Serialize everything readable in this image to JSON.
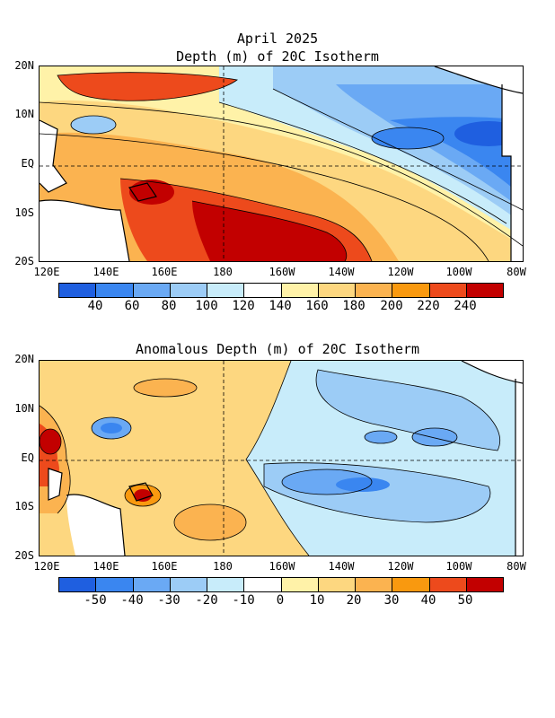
{
  "top": {
    "title1": "April 2025",
    "title2": "Depth (m) of 20C Isotherm",
    "colorbar": {
      "labels": [
        "40",
        "60",
        "80",
        "100",
        "120",
        "140",
        "160",
        "180",
        "200",
        "220",
        "240"
      ],
      "colors": [
        "#1f5fe0",
        "#3a86f0",
        "#6aa9f4",
        "#9cccf6",
        "#c8ecfa",
        "#ffffff",
        "#fff2a8",
        "#fdd780",
        "#fbb350",
        "#f9990f",
        "#ed4a1c",
        "#c20000"
      ]
    }
  },
  "bottom": {
    "title": "Anomalous Depth (m) of 20C Isotherm",
    "colorbar": {
      "labels": [
        "-50",
        "-40",
        "-30",
        "-20",
        "-10",
        "0",
        "10",
        "20",
        "30",
        "40",
        "50"
      ],
      "colors": [
        "#1f5fe0",
        "#3a86f0",
        "#6aa9f4",
        "#9cccf6",
        "#c8ecfa",
        "#ffffff",
        "#fff2a8",
        "#fdd780",
        "#fbb350",
        "#f9990f",
        "#ed4a1c",
        "#c20000"
      ]
    }
  },
  "lat_labels": [
    "20N",
    "10N",
    "EQ",
    "10S",
    "20S"
  ],
  "lon_labels": [
    "120E",
    "140E",
    "160E",
    "180",
    "160W",
    "140W",
    "120W",
    "100W",
    "80W"
  ]
}
